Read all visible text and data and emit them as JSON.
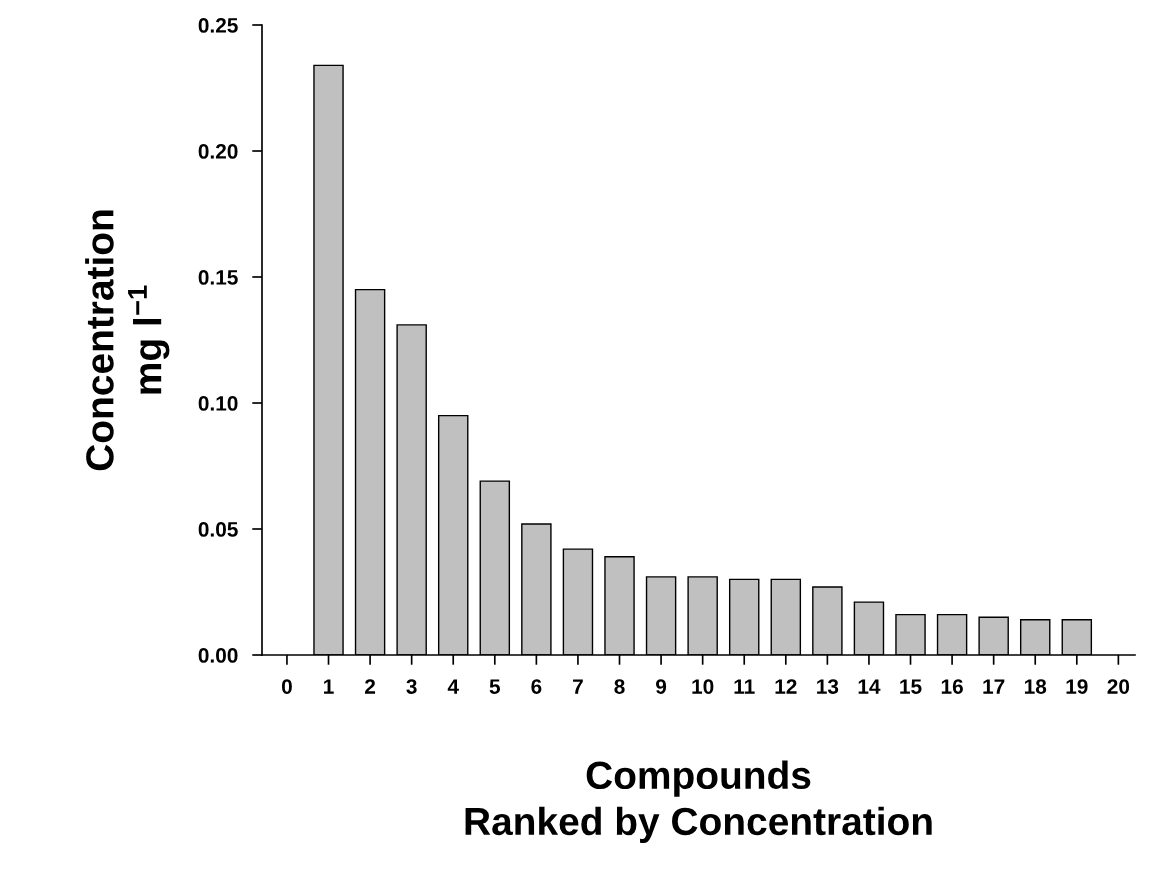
{
  "chart_data": {
    "type": "bar",
    "x": [
      1,
      2,
      3,
      4,
      5,
      6,
      7,
      8,
      9,
      10,
      11,
      12,
      13,
      14,
      15,
      16,
      17,
      18,
      19
    ],
    "values": [
      0.234,
      0.145,
      0.131,
      0.095,
      0.069,
      0.052,
      0.042,
      0.039,
      0.031,
      0.031,
      0.03,
      0.03,
      0.027,
      0.021,
      0.016,
      0.016,
      0.015,
      0.014,
      0.014
    ],
    "color": "#c0c0c0",
    "xlabel": "Compounds\nRanked by Concentration",
    "ylabel": "Concentration\nmg l$^{−1}$",
    "xlim": [
      -0.6,
      20.4
    ],
    "xticks": [
      0,
      1,
      2,
      3,
      4,
      5,
      6,
      7,
      8,
      9,
      10,
      11,
      12,
      13,
      14,
      15,
      16,
      17,
      18,
      19,
      20
    ],
    "ylim": [
      0,
      0.25
    ],
    "yticks": [
      {
        "value": 0,
        "label": "0.00"
      },
      {
        "value": 0.05,
        "label": "0.05"
      },
      {
        "value": 0.1,
        "label": "0.10"
      },
      {
        "value": 0.15,
        "label": "0.15"
      },
      {
        "value": 0.2,
        "label": "0.20"
      },
      {
        "value": 0.25,
        "label": "0.25"
      }
    ],
    "grid": false
  }
}
